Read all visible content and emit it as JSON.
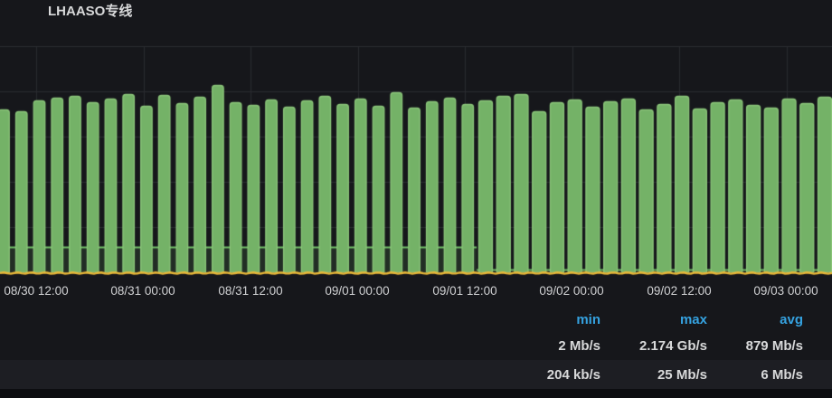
{
  "panel": {
    "title": "LHAASO专线"
  },
  "colors": {
    "background": "#16171b",
    "grid": "#2a2c31",
    "series_green": "#73BF69",
    "series_green_fill": "rgba(115,191,105,0.13)",
    "series_yellow": "#EAB839",
    "axis_text": "#cfd0d2",
    "legend_header_blue": "#35a2e0",
    "legend_value_text": "#d8d9da",
    "legend_alt_row_bg": "#1d1e23"
  },
  "x_axis": {
    "ticks": [
      "08/30 12:00",
      "08/31 00:00",
      "08/31 12:00",
      "09/01 00:00",
      "09/01 12:00",
      "09/02 00:00",
      "09/02 12:00",
      "09/03 00:00"
    ]
  },
  "legend": {
    "headers": [
      "min",
      "max",
      "avg"
    ],
    "rows": [
      [
        "2 Mb/s",
        "2.174 Gb/s",
        "879 Mb/s"
      ],
      [
        "204 kb/s",
        "25 Mb/s",
        "6 Mb/s"
      ]
    ]
  },
  "chart_data": {
    "type": "area",
    "title": "LHAASO专线",
    "x_tick_labels": [
      "08/30 12:00",
      "08/31 00:00",
      "08/31 12:00",
      "09/01 00:00",
      "09/01 12:00",
      "09/02 00:00",
      "09/02 12:00",
      "09/03 00:00"
    ],
    "y_axis": {
      "unit": "bits/sec",
      "min_gbps": 0,
      "gridline_step_gbps": 0.5,
      "top_gridline_gbps": 2.5,
      "tick_labels_visible": false
    },
    "grid": true,
    "legend_position": "bottom",
    "series": [
      {
        "color": "#73BF69",
        "shape": "square-wave area, ~2-hour cycle period",
        "cycle_peaks_gbps": [
          1.8,
          1.78,
          1.9,
          1.93,
          1.95,
          1.88,
          1.92,
          1.97,
          1.84,
          1.96,
          1.87,
          1.94,
          2.07,
          1.88,
          1.85,
          1.91,
          1.83,
          1.9,
          1.95,
          1.86,
          1.92,
          1.84,
          1.99,
          1.82,
          1.89,
          1.93,
          1.86,
          1.9,
          1.95,
          1.97,
          1.78,
          1.88,
          1.91,
          1.83,
          1.89,
          1.92,
          1.8,
          1.86,
          1.95,
          1.81,
          1.88,
          1.91,
          1.85,
          1.82,
          1.92,
          1.87,
          1.94
        ],
        "valley_gbps_left_section": 0.28,
        "valley_gbps_right_section": 0.03,
        "section_split_cycle_index": 27,
        "stats": {
          "min": "2 Mb/s",
          "max": "2.174 Gb/s",
          "avg": "879 Mb/s"
        }
      },
      {
        "color": "#EAB839",
        "shape": "flat line just above zero",
        "approx_level_mbps": 6,
        "stats": {
          "min": "204 kb/s",
          "max": "25 Mb/s",
          "avg": "6 Mb/s"
        }
      }
    ]
  }
}
